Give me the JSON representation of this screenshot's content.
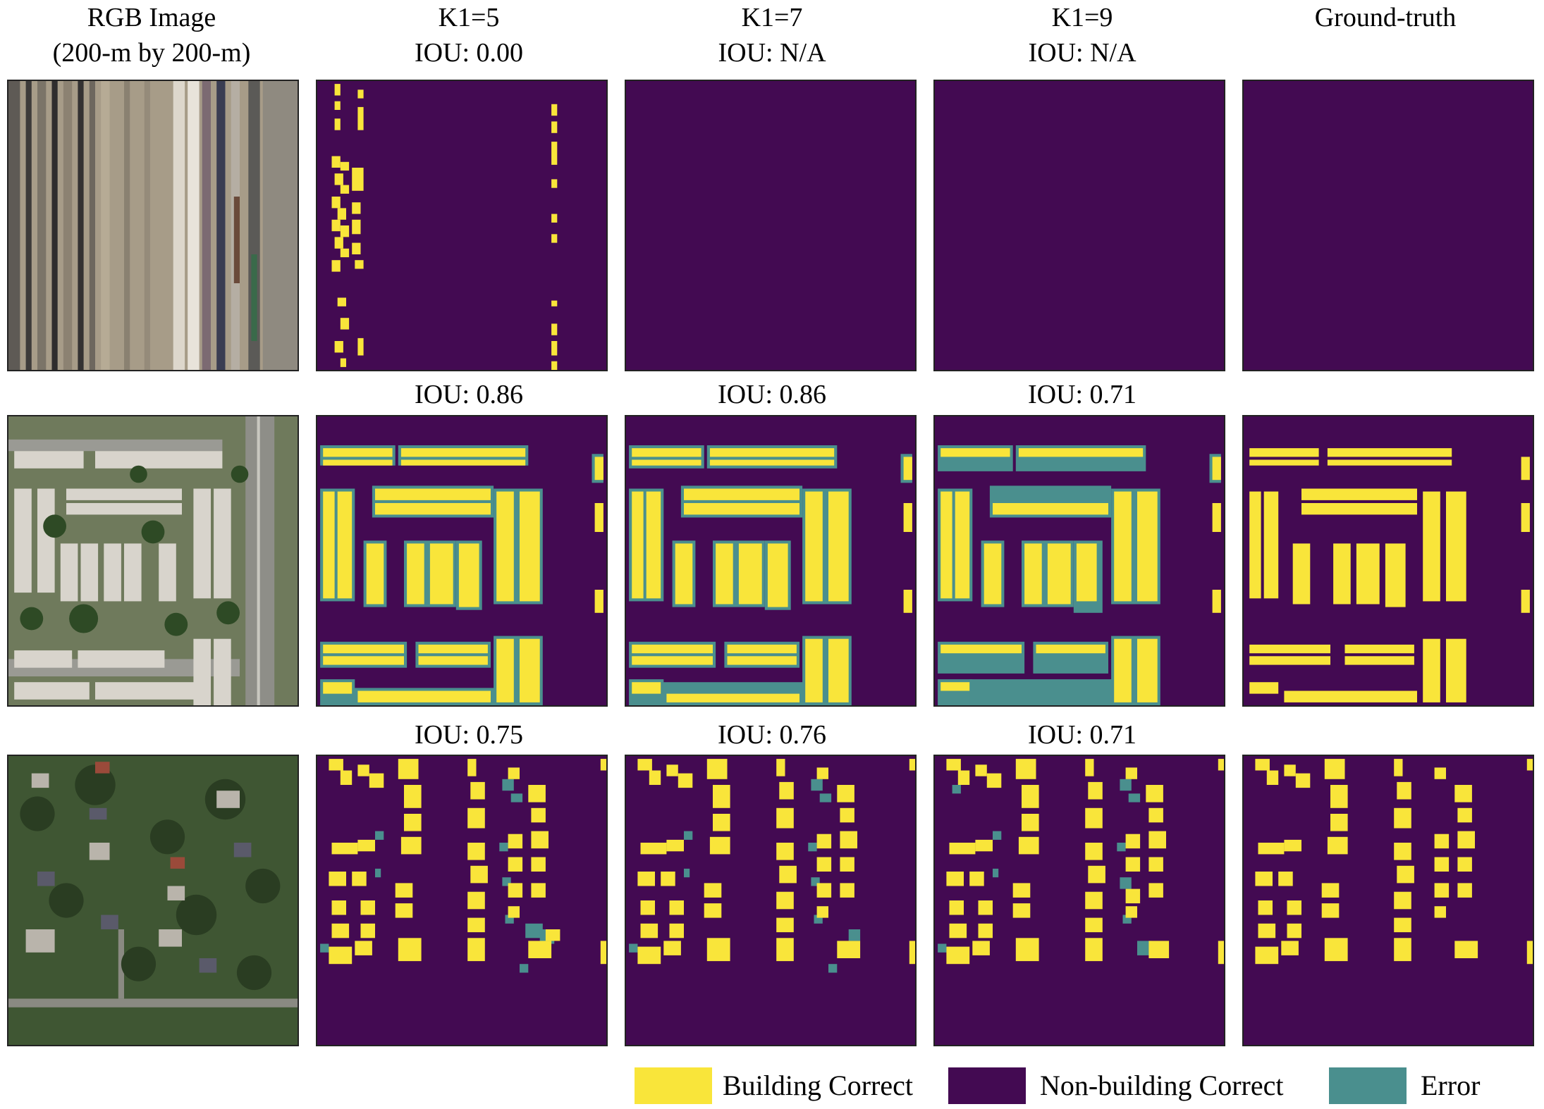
{
  "columns": [
    {
      "line1": "RGB Image",
      "line2": "(200-m by 200-m)"
    },
    {
      "line1": "K1=5",
      "line2": "IOU: 0.00"
    },
    {
      "line1": "K1=7",
      "line2": "IOU: N/A"
    },
    {
      "line1": "K1=9",
      "line2": "IOU: N/A"
    },
    {
      "line1": "",
      "line2": "Ground-truth"
    }
  ],
  "rows": [
    {
      "iou": [
        "",
        "",
        ""
      ]
    },
    {
      "iou": [
        "IOU: 0.86",
        "IOU: 0.86",
        "IOU: 0.71"
      ]
    },
    {
      "iou": [
        "IOU: 0.75",
        "IOU: 0.76",
        "IOU: 0.71"
      ]
    }
  ],
  "legend": [
    {
      "label": "Building Correct",
      "color": "#f9e53a"
    },
    {
      "label": "Non-building Correct",
      "color": "#430a52"
    },
    {
      "label": "Error",
      "color": "#4a8f8e"
    }
  ],
  "colors": {
    "building": "#f9e53a",
    "background": "#430a52",
    "error": "#4a8f8e"
  }
}
